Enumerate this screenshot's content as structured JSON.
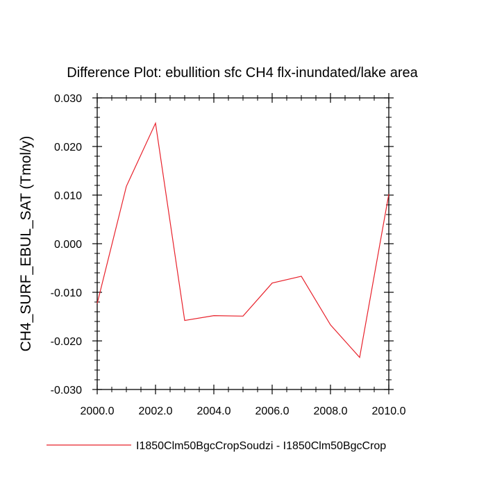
{
  "chart_data": {
    "type": "line",
    "title": "Difference Plot: ebullition sfc CH4 flx-inundated/lake area",
    "xlabel": "",
    "ylabel": "CH4_SURF_EBUL_SAT  (Tmol/y)",
    "xlim": [
      2000,
      2010
    ],
    "ylim": [
      -0.03,
      0.03
    ],
    "xticks": [
      2000,
      2002,
      2004,
      2006,
      2008,
      2010
    ],
    "xtick_labels": [
      "2000.0",
      "2002.0",
      "2004.0",
      "2006.0",
      "2008.0",
      "2010.0"
    ],
    "yticks": [
      0.03,
      0.02,
      0.01,
      0.0,
      -0.01,
      -0.02,
      -0.03
    ],
    "ytick_labels": [
      "0.030",
      "0.020",
      "0.010",
      "0.000",
      "-0.010",
      "-0.020",
      "-0.030"
    ],
    "grid": false,
    "legend_position": "bottom",
    "series": [
      {
        "name": "I1850Clm50BgcCropSoudzi - I1850Clm50BgcCrop",
        "color": "#e8202a",
        "x": [
          2000,
          2001,
          2002,
          2003,
          2004,
          2005,
          2006,
          2007,
          2008,
          2009,
          2010
        ],
        "y": [
          -0.0123,
          0.0118,
          0.0248,
          -0.0158,
          -0.0148,
          -0.0149,
          -0.0081,
          -0.0067,
          -0.0167,
          -0.0234,
          0.0102
        ]
      }
    ]
  }
}
